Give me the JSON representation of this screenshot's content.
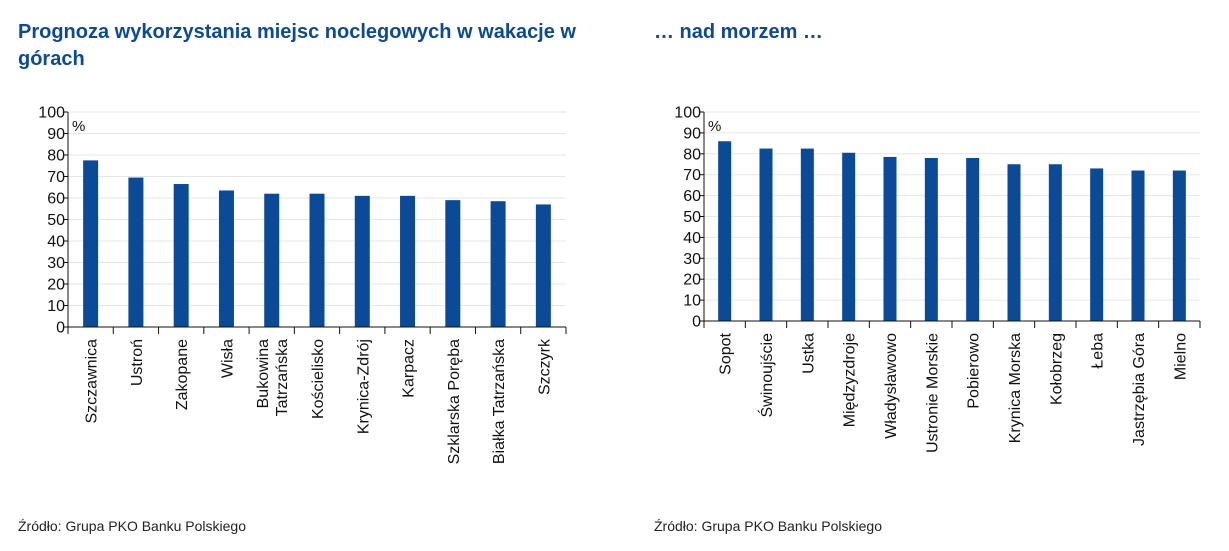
{
  "chart_data": [
    {
      "type": "bar",
      "title": "Prognoza wykorzystania miejsc noclegowych w wakacje w górach",
      "unit": "%",
      "ylim": [
        0,
        100
      ],
      "yticks": [
        0,
        10,
        20,
        30,
        40,
        50,
        60,
        70,
        80,
        90,
        100
      ],
      "grid": true,
      "categories": [
        "Szczawnica",
        "Ustroń",
        "Zakopane",
        "Wisła",
        "Bukowina Tatrzańska",
        "Kościelisko",
        "Krynica-Zdrój",
        "Karpacz",
        "Szklarska Poręba",
        "Białka Tatrzańska",
        "Szczyrk"
      ],
      "category_lines": [
        [
          "Szczawnica"
        ],
        [
          "Ustroń"
        ],
        [
          "Zakopane"
        ],
        [
          "Wisła"
        ],
        [
          "Bukowina",
          "Tatrzańska"
        ],
        [
          "Kościelisko"
        ],
        [
          "Krynica-Zdrój"
        ],
        [
          "Karpacz"
        ],
        [
          "Szklarska Poręba"
        ],
        [
          "Białka Tatrzańska"
        ],
        [
          "Szczyrk"
        ]
      ],
      "values": [
        77.5,
        69.5,
        66.5,
        63.5,
        62,
        62,
        61,
        61,
        59,
        58.5,
        57
      ],
      "color": "#0b4a97",
      "source": "Źródło: Grupa PKO Banku Polskiego"
    },
    {
      "type": "bar",
      "title": "… nad morzem …",
      "unit": "%",
      "ylim": [
        0,
        100
      ],
      "yticks": [
        0,
        10,
        20,
        30,
        40,
        50,
        60,
        70,
        80,
        90,
        100
      ],
      "grid": true,
      "categories": [
        "Sopot",
        "Świnoujście",
        "Ustka",
        "Międzyzdroje",
        "Władysławowo",
        "Ustronie Morskie",
        "Pobierowo",
        "Krynica Morska",
        "Kołobrzeg",
        "Łeba",
        "Jastrzębia Góra",
        "Mielno"
      ],
      "category_lines": [
        [
          "Sopot"
        ],
        [
          "Świnoujście"
        ],
        [
          "Ustka"
        ],
        [
          "Międzyzdroje"
        ],
        [
          "Władysławowo"
        ],
        [
          "Ustronie Morskie"
        ],
        [
          "Pobierowo"
        ],
        [
          "Krynica Morska"
        ],
        [
          "Kołobrzeg"
        ],
        [
          "Łeba"
        ],
        [
          "Jastrzębia Góra"
        ],
        [
          "Mielno"
        ]
      ],
      "values": [
        86,
        82.5,
        82.5,
        80.5,
        78.5,
        78,
        78,
        75,
        75,
        73,
        72,
        72
      ],
      "color": "#0b4a97",
      "source": "Źródło: Grupa PKO Banku Polskiego"
    }
  ]
}
